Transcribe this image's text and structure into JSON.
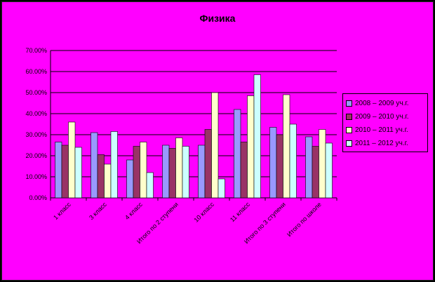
{
  "chart_data": {
    "type": "bar",
    "title": "Физика",
    "categories": [
      "1 класс",
      "3 класс",
      "4 класс",
      "Итого по 2 ступени",
      "10 класс",
      "11 класс",
      "Итого по 3 ступени",
      "Итого по школе"
    ],
    "series": [
      {
        "name": "2008 – 2009 уч.г.",
        "color": "#9999ff",
        "values": [
          26.5,
          31.0,
          18.0,
          25.0,
          25.0,
          42.0,
          33.5,
          29.0
        ]
      },
      {
        "name": "2009 – 2010 уч.г.",
        "color": "#993366",
        "values": [
          25.0,
          20.5,
          24.5,
          23.5,
          32.5,
          26.5,
          30.0,
          24.5
        ]
      },
      {
        "name": "2010 – 2011 уч.г.",
        "color": "#ffffcc",
        "values": [
          36.0,
          16.0,
          26.5,
          28.5,
          50.0,
          48.5,
          49.0,
          32.5
        ]
      },
      {
        "name": "2011 – 2012 уч.г.",
        "color": "#ccffff",
        "values": [
          24.0,
          31.5,
          12.0,
          24.5,
          9.0,
          58.5,
          35.0,
          26.0
        ]
      }
    ],
    "yticks": [
      "0.00%",
      "10.00%",
      "20.00%",
      "30.00%",
      "40.00%",
      "50.00%",
      "60.00%",
      "70.00%"
    ],
    "ylim": [
      0,
      70
    ],
    "grid": true,
    "legend_position": "right"
  }
}
